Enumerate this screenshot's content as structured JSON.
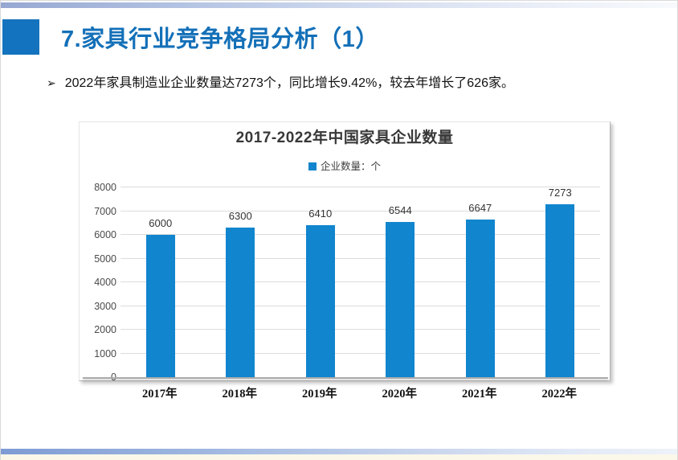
{
  "slide": {
    "header": {
      "title": "7.家具行业竞争格局分析（1）"
    },
    "bullet": {
      "marker": "➢",
      "text": "2022年家具制造业企业数量达7273个，同比增长9.42%，较去年增长了626家。"
    }
  },
  "colors": {
    "accent_square_blue": "#1373be",
    "title_blue": "#1470b8",
    "bar_blue": "#1185ce",
    "gridline_gray": "#dcdcdc",
    "top_bar_gradient_left": "#96a7d2",
    "bottom_bar_gradient_left": "#7e9bd4",
    "bottom_cream_strip": "#fbf8ea"
  },
  "chart_data": {
    "type": "bar",
    "title": "2017-2022年中国家具企业数量",
    "legend": "企业数量：个",
    "legend_position": "top",
    "categories": [
      "2017年",
      "2018年",
      "2019年",
      "2020年",
      "2021年",
      "2022年"
    ],
    "values": [
      6000,
      6300,
      6410,
      6544,
      6647,
      7273
    ],
    "xlabel": "",
    "ylabel": "",
    "ylim": [
      0,
      8000
    ],
    "ytick_step": 1000,
    "grid": true
  }
}
